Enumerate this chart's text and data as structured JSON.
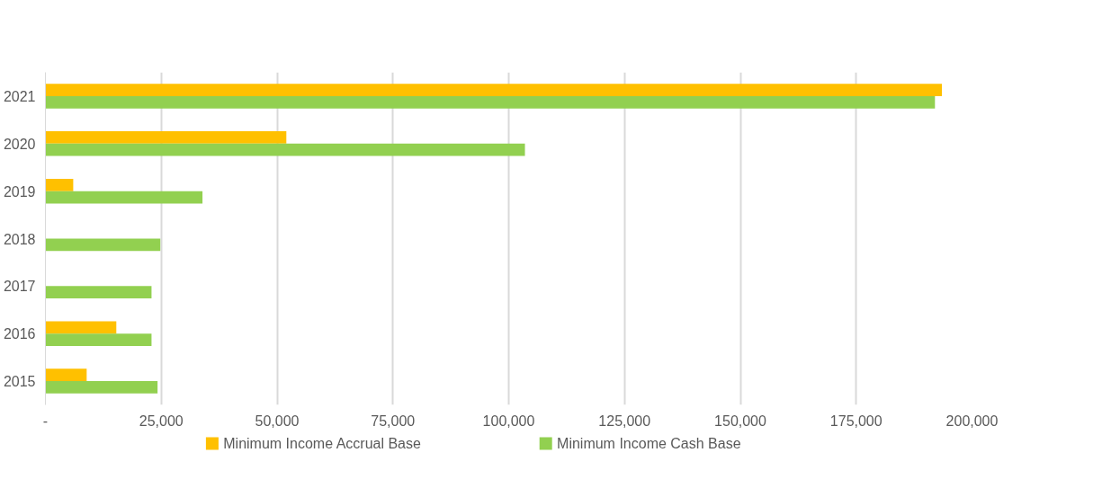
{
  "chart_data": {
    "type": "bar",
    "orientation": "horizontal",
    "categories": [
      "2021",
      "2020",
      "2019",
      "2018",
      "2017",
      "2016",
      "2015"
    ],
    "series": [
      {
        "name": "Minimum Income Accrual Base",
        "color": "#ffc000",
        "values": [
          193500,
          52000,
          6000,
          null,
          null,
          15300,
          8900
        ]
      },
      {
        "name": "Minimum Income Cash Base",
        "color": "#92d050",
        "values": [
          192000,
          103500,
          33900,
          24800,
          22900,
          22900,
          24200
        ]
      }
    ],
    "xlim": [
      0,
      200000
    ],
    "xticks": [
      {
        "value": 0,
        "label": "-"
      },
      {
        "value": 25000,
        "label": "25,000"
      },
      {
        "value": 50000,
        "label": "50,000"
      },
      {
        "value": 75000,
        "label": "75,000"
      },
      {
        "value": 100000,
        "label": "100,000"
      },
      {
        "value": 125000,
        "label": "125,000"
      },
      {
        "value": 150000,
        "label": "150,000"
      },
      {
        "value": 175000,
        "label": "175,000"
      },
      {
        "value": 200000,
        "label": "200,000"
      }
    ],
    "grid": "x",
    "legend": "bottom"
  }
}
